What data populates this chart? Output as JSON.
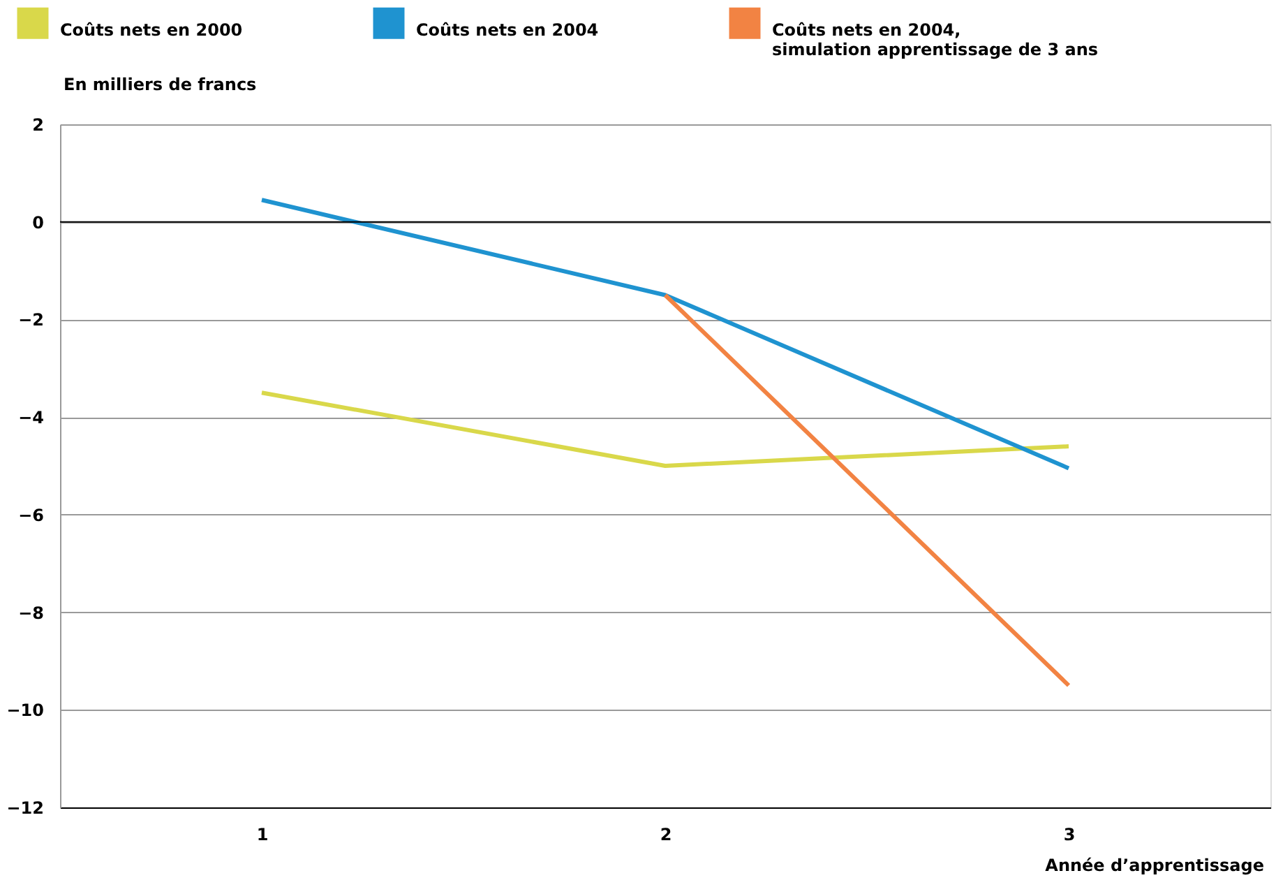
{
  "chart_data": {
    "type": "line",
    "ylabel": "En milliers de francs",
    "xlabel": "Année d’apprentissage",
    "categories": [
      "1",
      "2",
      "3"
    ],
    "series": [
      {
        "name": "Coûts nets en 2000",
        "color": "#d9d84a",
        "values": [
          -3.5,
          -5.0,
          -4.6
        ]
      },
      {
        "name": "Coûts nets en 2004",
        "color": "#1f93d0",
        "values": [
          0.45,
          -1.5,
          -5.05
        ]
      },
      {
        "name": "Coûts nets en 2004,\nsimulation apprentissage de 3 ans",
        "color": "#f28343",
        "values": [
          null,
          -1.5,
          -9.5
        ]
      }
    ],
    "ylim": [
      -12,
      2
    ],
    "yticks": [
      -12,
      -10,
      -8,
      -6,
      -4,
      -2,
      0,
      2
    ],
    "grid": "y",
    "legend": "top",
    "marker": "none",
    "line_style": "solid",
    "ref_lines": [
      {
        "axis": "y",
        "value": 0,
        "color": "#000000"
      }
    ]
  }
}
